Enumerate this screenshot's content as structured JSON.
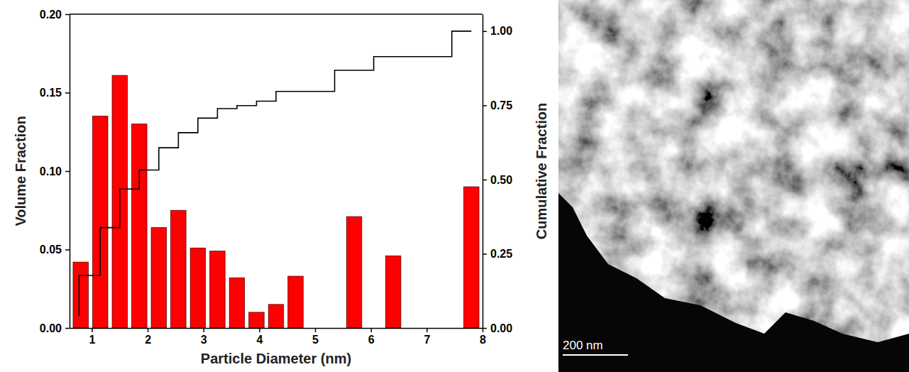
{
  "chart_data": {
    "type": "histogram",
    "x_label": "Particle Diameter (nm)",
    "y_label": "Volume Fraction",
    "y2_label": "Cumulative Fraction",
    "bins": [
      0.625,
      0.975,
      1.325,
      1.675,
      2.025,
      2.375,
      2.725,
      3.075,
      3.425,
      3.775,
      4.125,
      4.475,
      4.825,
      5.175,
      5.525,
      5.875,
      6.225,
      6.575,
      6.925,
      7.275,
      7.625,
      7.975
    ],
    "series": [
      {
        "type": "bar",
        "color": "#ff0000",
        "values": [
          0.042,
          0.135,
          0.161,
          0.13,
          0.064,
          0.075,
          0.051,
          0.049,
          0.032,
          0.01,
          0.015,
          0.033,
          0,
          0,
          0.071,
          0,
          0.046,
          0,
          0,
          0,
          0.09
        ]
      },
      {
        "type": "line",
        "axis": "y2",
        "color": "#000000",
        "line_style": "step",
        "x": [
          0.77,
          0.77,
          1.15,
          1.5,
          1.85,
          2.2,
          2.55,
          2.9,
          3.25,
          3.6,
          3.95,
          4.3,
          5.35,
          6.05,
          7.45,
          7.8
        ],
        "values": [
          0.04,
          0.177,
          0.338,
          0.468,
          0.532,
          0.607,
          0.658,
          0.707,
          0.739,
          0.749,
          0.764,
          0.797,
          0.868,
          0.914,
          1.0,
          1.0
        ]
      }
    ],
    "xlim": [
      0.6,
      8
    ],
    "xticks": [
      1,
      2,
      3,
      4,
      5,
      6,
      7,
      8
    ],
    "ylim": [
      0,
      0.2
    ],
    "yticks": [
      {
        "value": 0,
        "label": "0.00"
      },
      {
        "value": 0.05,
        "label": "0.05"
      },
      {
        "value": 0.1,
        "label": "0.10"
      },
      {
        "value": 0.15,
        "label": "0.15"
      },
      {
        "value": 0.2,
        "label": "0.20"
      }
    ],
    "y2lim": [
      0,
      1.057
    ],
    "y2ticks": [
      {
        "value": 0,
        "label": "0.00"
      },
      {
        "value": 0.25,
        "label": "0.25"
      },
      {
        "value": 0.5,
        "label": "0.50"
      },
      {
        "value": 0.75,
        "label": "0.75"
      },
      {
        "value": 1.0,
        "label": "1.00"
      }
    ]
  },
  "image_panel": {
    "scale_bar_label": "200 nm"
  }
}
